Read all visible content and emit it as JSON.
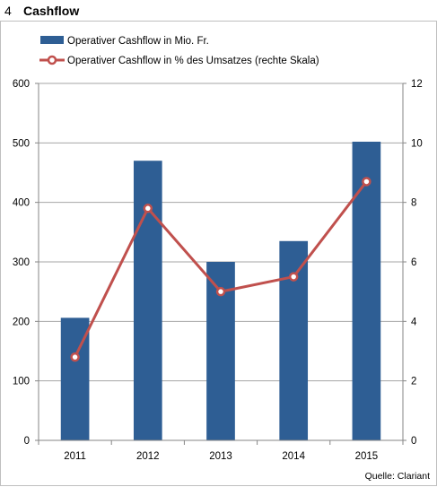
{
  "header": {
    "number": "4",
    "title": "Cashflow"
  },
  "source": "Quelle: Clariant",
  "colors": {
    "bar": "#2E5E94",
    "line": "#C0504D",
    "grid": "#A6A6A6",
    "axis": "#868686"
  },
  "chart_data": {
    "type": "bar",
    "categories": [
      "2011",
      "2012",
      "2013",
      "2014",
      "2015"
    ],
    "series": [
      {
        "name": "Operativer Cashflow in Mio. Fr.",
        "type": "bar",
        "axis": "left",
        "values": [
          206,
          470,
          300,
          335,
          502
        ]
      },
      {
        "name": "Operativer Cashflow in % des Umsatzes (rechte Skala)",
        "type": "line",
        "axis": "right",
        "values": [
          2.8,
          7.8,
          5.0,
          5.5,
          8.7
        ]
      }
    ],
    "ylim_left": [
      0,
      600
    ],
    "yticks_left": [
      "0",
      "100",
      "200",
      "300",
      "400",
      "500",
      "600"
    ],
    "ylim_right": [
      0,
      12
    ],
    "yticks_right": [
      "0",
      "2",
      "4",
      "6",
      "8",
      "10",
      "12"
    ],
    "grid": true,
    "legend_position": "top-left"
  }
}
